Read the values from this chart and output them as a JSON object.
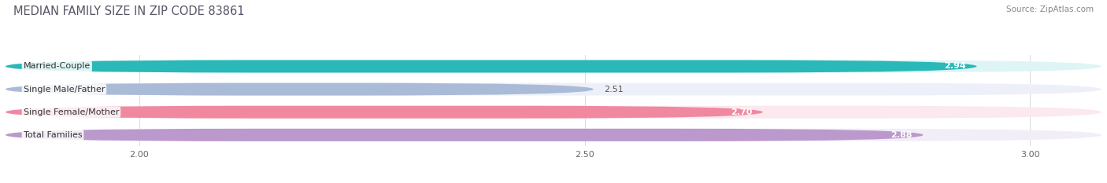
{
  "title": "MEDIAN FAMILY SIZE IN ZIP CODE 83861",
  "source": "Source: ZipAtlas.com",
  "categories": [
    "Married-Couple",
    "Single Male/Father",
    "Single Female/Mother",
    "Total Families"
  ],
  "values": [
    2.94,
    2.51,
    2.7,
    2.88
  ],
  "bar_colors": [
    "#2ab8b8",
    "#aabbd8",
    "#f088a0",
    "#bb99cc"
  ],
  "bar_bg_colors": [
    "#dff5f5",
    "#edf0f8",
    "#fce8ef",
    "#f2eef8"
  ],
  "value_inside": [
    true,
    false,
    true,
    true
  ],
  "xmin": 1.85,
  "xmax": 3.08,
  "xticks": [
    2.0,
    2.5,
    3.0
  ],
  "xtick_labels": [
    "2.00",
    "2.50",
    "3.00"
  ],
  "figsize": [
    14.06,
    2.33
  ],
  "dpi": 100,
  "title_fontsize": 10.5,
  "label_fontsize": 8,
  "value_fontsize": 8,
  "tick_fontsize": 8,
  "bar_height": 0.55,
  "bar_gap": 0.45
}
